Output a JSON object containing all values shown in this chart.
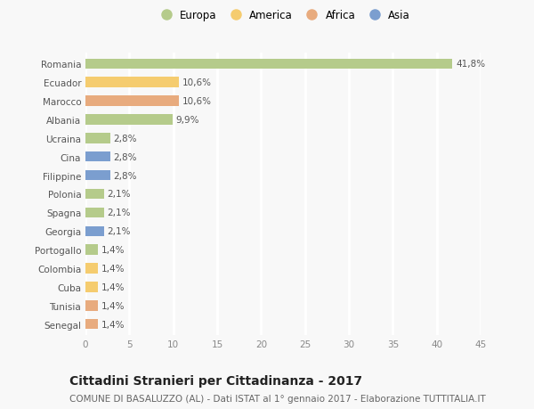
{
  "countries": [
    "Romania",
    "Ecuador",
    "Marocco",
    "Albania",
    "Ucraina",
    "Cina",
    "Filippine",
    "Polonia",
    "Spagna",
    "Georgia",
    "Portogallo",
    "Colombia",
    "Cuba",
    "Tunisia",
    "Senegal"
  ],
  "values": [
    41.8,
    10.6,
    10.6,
    9.9,
    2.8,
    2.8,
    2.8,
    2.1,
    2.1,
    2.1,
    1.4,
    1.4,
    1.4,
    1.4,
    1.4
  ],
  "labels": [
    "41,8%",
    "10,6%",
    "10,6%",
    "9,9%",
    "2,8%",
    "2,8%",
    "2,8%",
    "2,1%",
    "2,1%",
    "2,1%",
    "1,4%",
    "1,4%",
    "1,4%",
    "1,4%",
    "1,4%"
  ],
  "continents": [
    "Europa",
    "America",
    "Africa",
    "Europa",
    "Europa",
    "Asia",
    "Asia",
    "Europa",
    "Europa",
    "Asia",
    "Europa",
    "America",
    "America",
    "Africa",
    "Africa"
  ],
  "continent_colors": {
    "Europa": "#b5cb8b",
    "America": "#f5cc6f",
    "Africa": "#e8ab7e",
    "Asia": "#7b9ecf"
  },
  "legend_order": [
    "Europa",
    "America",
    "Africa",
    "Asia"
  ],
  "xlim": [
    0,
    45
  ],
  "xticks": [
    0,
    5,
    10,
    15,
    20,
    25,
    30,
    35,
    40,
    45
  ],
  "title": "Cittadini Stranieri per Cittadinanza - 2017",
  "subtitle": "COMUNE DI BASALUZZO (AL) - Dati ISTAT al 1° gennaio 2017 - Elaborazione TUTTITALIA.IT",
  "background_color": "#f8f8f8",
  "grid_color": "#ffffff",
  "bar_height": 0.55,
  "title_fontsize": 10,
  "subtitle_fontsize": 7.5,
  "label_fontsize": 7.5,
  "tick_fontsize": 7.5,
  "legend_fontsize": 8.5
}
